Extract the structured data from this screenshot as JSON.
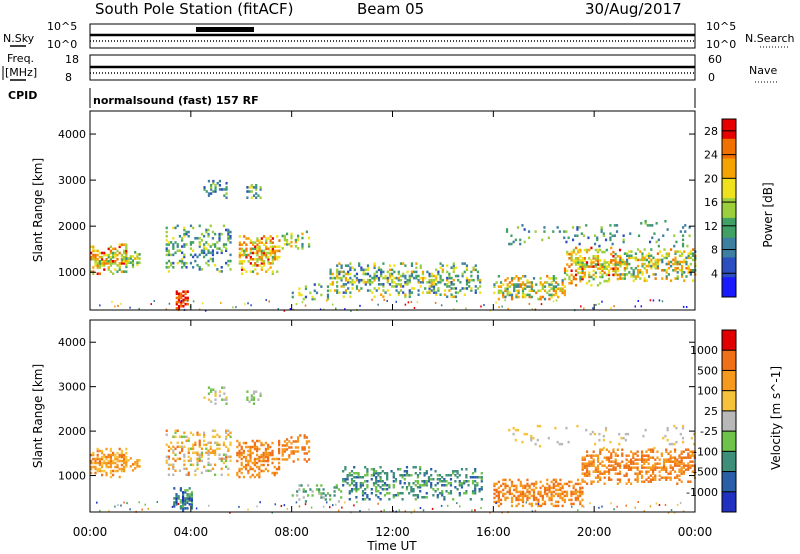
{
  "header": {
    "title": "South Pole Station (fitACF)",
    "beam": "Beam 05",
    "date": "30/Aug/2017"
  },
  "top_panels": {
    "nsky_label": "N.Sky",
    "nsky_ticks": [
      "10^5",
      "10^0"
    ],
    "nsearch_label": "N.Search",
    "nsearch_ticks": [
      "10^5",
      "10^0"
    ],
    "freq_label_1": "Freq.",
    "freq_label_2": "[MHz]",
    "freq_ticks": [
      "18",
      "8"
    ],
    "nave_label": "Nave",
    "nave_ticks": [
      "60",
      "0"
    ],
    "cpid_label": "CPID",
    "cpid_text": "normalsound (fast) 157 RF"
  },
  "chart_data": [
    {
      "type": "heatmap",
      "name": "power",
      "ylabel": "Slant Range [km]",
      "xlabel": "Time UT",
      "x_ticks": [
        "00:00",
        "04:00",
        "08:00",
        "12:00",
        "16:00",
        "20:00",
        "00:00"
      ],
      "xlim_hours": [
        0,
        24
      ],
      "ylim_km": [
        180,
        4500
      ],
      "y_ticks": [
        1000,
        2000,
        3000,
        4000
      ],
      "colorbar_label": "Power [dB]",
      "colorbar_ticks": [
        "4",
        "8",
        "12",
        "16",
        "20",
        "24",
        "28"
      ],
      "colorbar_colors": [
        "#1a1aff",
        "#2b4fbf",
        "#3d7fa0",
        "#41a063",
        "#9ccf3c",
        "#f0e11e",
        "#f5a300",
        "#f07000",
        "#e60000"
      ],
      "colorbar_range": [
        0,
        30
      ]
    },
    {
      "type": "heatmap",
      "name": "velocity",
      "ylabel": "Slant Range [km]",
      "xlabel": "Time UT",
      "x_ticks": [
        "00:00",
        "04:00",
        "08:00",
        "12:00",
        "16:00",
        "20:00",
        "00:00"
      ],
      "xlim_hours": [
        0,
        24
      ],
      "ylim_km": [
        180,
        4500
      ],
      "y_ticks": [
        1000,
        2000,
        3000,
        4000
      ],
      "colorbar_label": "Velocity [m s^-1]",
      "colorbar_ticks": [
        "1000",
        "500",
        "100",
        "25",
        "-25",
        "-100",
        "-500",
        "-1000"
      ],
      "colorbar_colors": [
        "#2030c0",
        "#2a5fa8",
        "#3e8f7a",
        "#6fc24a",
        "#b8b8b8",
        "#f6c23a",
        "#f59a1c",
        "#f07018",
        "#e00000"
      ]
    }
  ],
  "x_axis": {
    "ticks": [
      "00:00",
      "04:00",
      "08:00",
      "12:00",
      "16:00",
      "20:00",
      "00:00"
    ],
    "label": "Time UT"
  }
}
